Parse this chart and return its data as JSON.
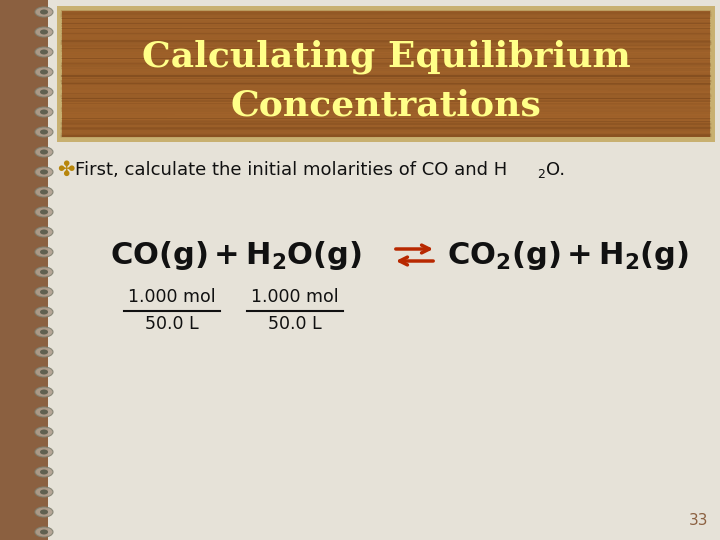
{
  "title_line1": "Calculating Equilibrium",
  "title_line2": "Concentrations",
  "title_color": "#FFFF88",
  "title_bg_dark": "#7A4A22",
  "title_bg_mid": "#A0622A",
  "title_border_color": "#C8B070",
  "slide_bg_color": "#E6E2D8",
  "left_bar_color": "#8B6040",
  "bullet_color": "#B8860B",
  "page_number": "33",
  "page_num_color": "#8B6040",
  "equation_color": "#111111",
  "arrow_color": "#B82800",
  "fraction1_num": "1.000 mol",
  "fraction1_den": "50.0 L",
  "fraction2_num": "1.000 mol",
  "fraction2_den": "50.0 L",
  "bullet_main": "First, calculate the initial molarities of CO and H",
  "bullet_sub": "2",
  "bullet_end": "O."
}
